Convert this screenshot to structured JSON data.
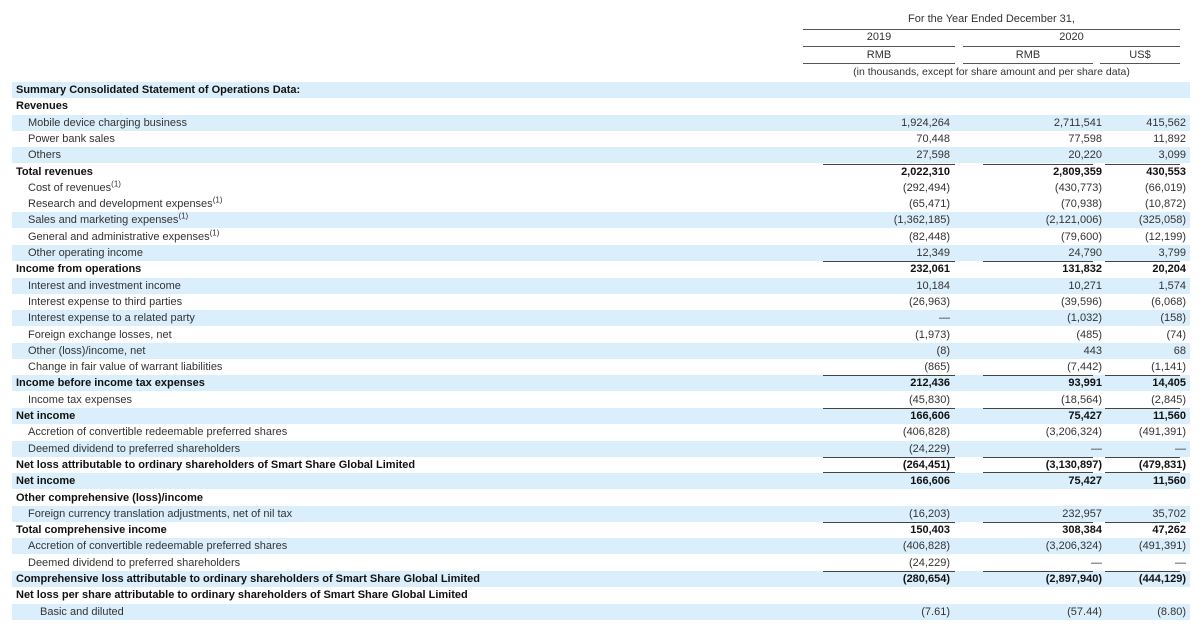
{
  "header": {
    "period": "For the Year Ended December 31,",
    "year_2019": "2019",
    "year_2020": "2020",
    "currency_rmb_2019": "RMB",
    "currency_rmb_2020": "RMB",
    "currency_usd": "US$",
    "units": "(in thousands, except for share amount and per share data)"
  },
  "rows": [
    {
      "label": "Summary Consolidated Statement of Operations Data:",
      "bold": true,
      "indent": 0,
      "shade": true,
      "v2019": "",
      "v2020": "",
      "usd": ""
    },
    {
      "label": "Revenues",
      "bold": true,
      "indent": 0,
      "shade": false,
      "v2019": "",
      "v2020": "",
      "usd": ""
    },
    {
      "label": "Mobile device charging business",
      "bold": false,
      "indent": 1,
      "shade": true,
      "v2019": "1,924,264",
      "v2020": "2,711,541",
      "usd": "415,562"
    },
    {
      "label": "Power bank sales",
      "bold": false,
      "indent": 1,
      "shade": false,
      "v2019": "70,448",
      "v2020": "77,598",
      "usd": "11,892"
    },
    {
      "label": "Others",
      "bold": false,
      "indent": 1,
      "shade": true,
      "v2019": "27,598",
      "v2020": "20,220",
      "usd": "3,099"
    },
    {
      "label": "Total revenues",
      "bold": true,
      "indent": 0,
      "shade": false,
      "v2019": "2,022,310",
      "v2020": "2,809,359",
      "usd": "430,553"
    },
    {
      "label": "Cost of revenues",
      "sup": "(1)",
      "bold": false,
      "indent": 1,
      "shade": false,
      "v2019": "(292,494)",
      "v2020": "(430,773)",
      "usd": "(66,019)"
    },
    {
      "label": "Research and development expenses",
      "sup": "(1)",
      "bold": false,
      "indent": 1,
      "shade": false,
      "v2019": "(65,471)",
      "v2020": "(70,938)",
      "usd": "(10,872)"
    },
    {
      "label": "Sales and marketing expenses",
      "sup": "(1)",
      "bold": false,
      "indent": 1,
      "shade": true,
      "v2019": "(1,362,185)",
      "v2020": "(2,121,006)",
      "usd": "(325,058)"
    },
    {
      "label": "General and administrative expenses",
      "sup": "(1)",
      "bold": false,
      "indent": 1,
      "shade": false,
      "v2019": "(82,448)",
      "v2020": "(79,600)",
      "usd": "(12,199)"
    },
    {
      "label": "Other operating income",
      "bold": false,
      "indent": 1,
      "shade": true,
      "v2019": "12,349",
      "v2020": "24,790",
      "usd": "3,799"
    },
    {
      "label": "Income from operations",
      "bold": true,
      "indent": 0,
      "shade": false,
      "v2019": "232,061",
      "v2020": "131,832",
      "usd": "20,204"
    },
    {
      "label": "Interest and investment income",
      "bold": false,
      "indent": 1,
      "shade": true,
      "v2019": "10,184",
      "v2020": "10,271",
      "usd": "1,574"
    },
    {
      "label": "Interest expense to third parties",
      "bold": false,
      "indent": 1,
      "shade": false,
      "v2019": "(26,963)",
      "v2020": "(39,596)",
      "usd": "(6,068)"
    },
    {
      "label": "Interest expense to a related party",
      "bold": false,
      "indent": 1,
      "shade": true,
      "v2019": "—",
      "v2020": "(1,032)",
      "usd": "(158)"
    },
    {
      "label": "Foreign exchange losses, net",
      "bold": false,
      "indent": 1,
      "shade": false,
      "v2019": "(1,973)",
      "v2020": "(485)",
      "usd": "(74)"
    },
    {
      "label": "Other (loss)/income, net",
      "bold": false,
      "indent": 1,
      "shade": true,
      "v2019": "(8)",
      "v2020": "443",
      "usd": "68"
    },
    {
      "label": "Change in fair value of warrant liabilities",
      "bold": false,
      "indent": 1,
      "shade": false,
      "v2019": "(865)",
      "v2020": "(7,442)",
      "usd": "(1,141)"
    },
    {
      "label": "Income before income tax expenses",
      "bold": true,
      "indent": 0,
      "shade": true,
      "v2019": "212,436",
      "v2020": "93,991",
      "usd": "14,405"
    },
    {
      "label": "Income tax expenses",
      "bold": false,
      "indent": 1,
      "shade": false,
      "v2019": "(45,830)",
      "v2020": "(18,564)",
      "usd": "(2,845)"
    },
    {
      "label": "Net income",
      "bold": true,
      "indent": 0,
      "shade": true,
      "v2019": "166,606",
      "v2020": "75,427",
      "usd": "11,560"
    },
    {
      "label": "Accretion of convertible redeemable preferred shares",
      "bold": false,
      "indent": 1,
      "shade": false,
      "v2019": "(406,828)",
      "v2020": "(3,206,324)",
      "usd": "(491,391)"
    },
    {
      "label": "Deemed dividend to preferred shareholders",
      "bold": false,
      "indent": 1,
      "shade": true,
      "v2019": "(24,229)",
      "v2020": "—",
      "usd": "—"
    },
    {
      "label": "Net loss attributable to ordinary shareholders of Smart Share Global Limited",
      "bold": true,
      "indent": 0,
      "shade": false,
      "v2019": "(264,451)",
      "v2020": "(3,130,897)",
      "usd": "(479,831)"
    },
    {
      "label": "Net income",
      "bold": true,
      "indent": 0,
      "shade": true,
      "v2019": "166,606",
      "v2020": "75,427",
      "usd": "11,560"
    },
    {
      "label": "Other comprehensive (loss)/income",
      "bold": true,
      "indent": 0,
      "shade": false,
      "v2019": "",
      "v2020": "",
      "usd": ""
    },
    {
      "label": "Foreign currency translation adjustments, net of nil tax",
      "bold": false,
      "indent": 1,
      "shade": true,
      "v2019": "(16,203)",
      "v2020": "232,957",
      "usd": "35,702"
    },
    {
      "label": "Total comprehensive income",
      "bold": true,
      "indent": 0,
      "shade": false,
      "v2019": "150,403",
      "v2020": "308,384",
      "usd": "47,262"
    },
    {
      "label": "Accretion of convertible redeemable preferred shares",
      "bold": false,
      "indent": 1,
      "shade": true,
      "v2019": "(406,828)",
      "v2020": "(3,206,324)",
      "usd": "(491,391)"
    },
    {
      "label": "Deemed dividend to preferred shareholders",
      "bold": false,
      "indent": 1,
      "shade": false,
      "v2019": "(24,229)",
      "v2020": "—",
      "usd": "—"
    },
    {
      "label": "Comprehensive loss attributable to ordinary shareholders of Smart Share Global Limited",
      "bold": true,
      "indent": 0,
      "shade": true,
      "v2019": "(280,654)",
      "v2020": "(2,897,940)",
      "usd": "(444,129)"
    },
    {
      "label": "Net loss per share attributable to ordinary shareholders of Smart Share Global Limited",
      "bold": true,
      "indent": 0,
      "shade": false,
      "v2019": "",
      "v2020": "",
      "usd": ""
    },
    {
      "label": "Basic and diluted",
      "bold": false,
      "indent": 2,
      "shade": true,
      "v2019": "(7.61)",
      "v2020": "(57.44)",
      "usd": "(8.80)"
    }
  ]
}
